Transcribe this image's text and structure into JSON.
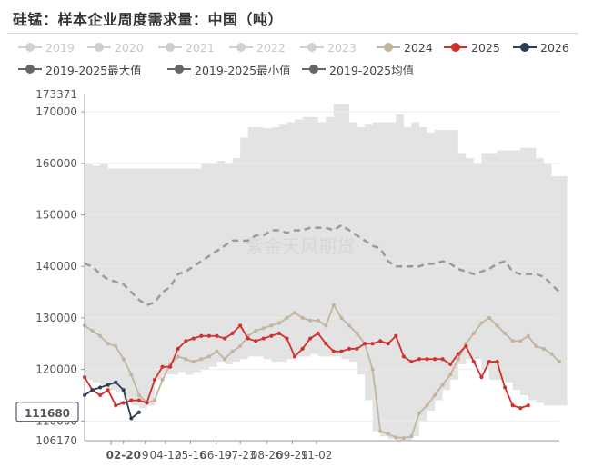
{
  "title": "硅锰：样本企业周度需求量：中国（吨）",
  "watermark": "紫金天风期货",
  "legend": [
    {
      "label": "2019",
      "color": "#d0d0d0",
      "enabled": false
    },
    {
      "label": "2020",
      "color": "#d0d0d0",
      "enabled": false
    },
    {
      "label": "2021",
      "color": "#d0d0d0",
      "enabled": false
    },
    {
      "label": "2022",
      "color": "#d0d0d0",
      "enabled": false
    },
    {
      "label": "2023",
      "color": "#d0d0d0",
      "enabled": false
    },
    {
      "label": "2024",
      "color": "#c2b49f",
      "enabled": true
    },
    {
      "label": "2025",
      "color": "#d0312d",
      "enabled": true
    },
    {
      "label": "2026",
      "color": "#2b3e55",
      "enabled": true
    },
    {
      "label": "2019-2025最大值",
      "color": "#666666",
      "enabled": true
    },
    {
      "label": "2019-2025最小值",
      "color": "#666666",
      "enabled": true
    },
    {
      "label": "2019-2025均值",
      "color": "#666666",
      "enabled": true
    }
  ],
  "chart_data": {
    "type": "line",
    "title": "硅锰：样本企业周度需求量：中国（吨）",
    "unit": "吨",
    "xlabel": "",
    "ylabel": "",
    "x_tick_labels": [
      "02-20",
      "9",
      "04-12",
      "05-16",
      "06-19",
      "07-23",
      "08-26",
      "09-29",
      "11-02"
    ],
    "x_tick_weeks": [
      5,
      7.8,
      10.4,
      13.6,
      16.9,
      20.0,
      23.4,
      26.7,
      29.8
    ],
    "y_ticks": [
      110000,
      120000,
      130000,
      140000,
      150000,
      160000,
      170000
    ],
    "y_range_labels": {
      "min": "106170",
      "max": "173371"
    },
    "ylim": [
      106170,
      173371
    ],
    "highlight": {
      "x_label": "02-20",
      "y_label": "111680",
      "value": 111680
    },
    "grid": true,
    "legend_position": "top",
    "band": {
      "name": "2019-2025最大值 / 2019-2025最小值",
      "color": "#e3e3e3",
      "max": [
        160000,
        159500,
        160000,
        159000,
        159000,
        159000,
        159000,
        159000,
        159000,
        159000,
        159000,
        159000,
        159000,
        159000,
        159000,
        160000,
        160000,
        160500,
        160000,
        161000,
        165000,
        167000,
        167000,
        166800,
        167000,
        167500,
        168000,
        168500,
        169000,
        169000,
        168000,
        169000,
        171500,
        171500,
        168000,
        167000,
        167500,
        168000,
        168000,
        168000,
        169500,
        167000,
        168000,
        167000,
        166000,
        166500,
        166500,
        166500,
        162000,
        161000,
        160000,
        162000,
        162000,
        162500,
        162500,
        162500,
        163000,
        163000,
        161000,
        160000,
        157500,
        157500
      ],
      "min": [
        118000,
        117500,
        117000,
        116000,
        115500,
        114000,
        113000,
        112500,
        113000,
        118000,
        119000,
        119000,
        119500,
        119000,
        119500,
        120000,
        120500,
        121500,
        121000,
        121500,
        122000,
        122500,
        122500,
        122000,
        121500,
        121500,
        122000,
        122500,
        122500,
        123000,
        122500,
        122500,
        122500,
        122000,
        121500,
        119000,
        114000,
        108000,
        107000,
        106500,
        106200,
        106300,
        107000,
        110000,
        112000,
        114000,
        116000,
        118000,
        121000,
        122000,
        122000,
        120000,
        118000,
        118000,
        117500,
        116000,
        115000,
        114000,
        113500,
        113000,
        113000,
        113000
      ]
    },
    "series": [
      {
        "name": "2019-2025均值",
        "color": "#9a9a9a",
        "dashed": true,
        "values": [
          140500,
          140000,
          138500,
          137500,
          137000,
          136500,
          135000,
          133500,
          132500,
          133000,
          135000,
          136000,
          138500,
          139000,
          140000,
          141000,
          142000,
          143000,
          144000,
          145000,
          145000,
          145000,
          146000,
          146000,
          147000,
          147000,
          146500,
          147000,
          147000,
          147500,
          147500,
          147500,
          147000,
          148000,
          147000,
          146000,
          145000,
          144000,
          143500,
          141000,
          140000,
          140000,
          140000,
          140000,
          140500,
          140500,
          141000,
          140500,
          139500,
          139000,
          138500,
          139000,
          139500,
          140500,
          141000,
          139000,
          138500,
          138500,
          138500,
          138000,
          136500,
          135000
        ]
      },
      {
        "name": "2024",
        "color": "#c2b49f",
        "values": [
          128500,
          127500,
          126500,
          125000,
          124500,
          122000,
          119000,
          115000,
          113500,
          114000,
          118000,
          121000,
          122500,
          122000,
          121500,
          122000,
          122500,
          123500,
          122000,
          123500,
          124500,
          126500,
          127500,
          128000,
          128500,
          129000,
          130000,
          131000,
          130000,
          129500,
          129500,
          128500,
          132500,
          130000,
          128500,
          127000,
          125000,
          120000,
          108000,
          107500,
          106800,
          106700,
          107000,
          111500,
          113000,
          115000,
          117000,
          119000,
          122000,
          125000,
          127000,
          129000,
          130000,
          128500,
          127000,
          125500,
          125500,
          126500,
          124500,
          124000,
          123000,
          121500
        ]
      },
      {
        "name": "2025",
        "color": "#d0312d",
        "values": [
          118500,
          116000,
          115000,
          116000,
          113000,
          113500,
          114000,
          114000,
          113500,
          118000,
          120500,
          120500,
          124000,
          125500,
          126000,
          126500,
          126500,
          126500,
          126000,
          127000,
          128500,
          126000,
          125500,
          126000,
          126500,
          127000,
          126000,
          122500,
          124000,
          126000,
          127000,
          125000,
          123500,
          123500,
          124000,
          124000,
          125000,
          125000,
          125500,
          125000,
          126500,
          122500,
          121500,
          122000,
          122000,
          122000,
          122000,
          121000,
          123000,
          124500,
          121500,
          118500,
          121500,
          121500,
          116500,
          113000,
          112500,
          113000
        ]
      },
      {
        "name": "2026",
        "color": "#2b3e55",
        "values": [
          115000,
          116000,
          116500,
          117000,
          117500,
          116000,
          110500,
          111680
        ]
      }
    ]
  }
}
